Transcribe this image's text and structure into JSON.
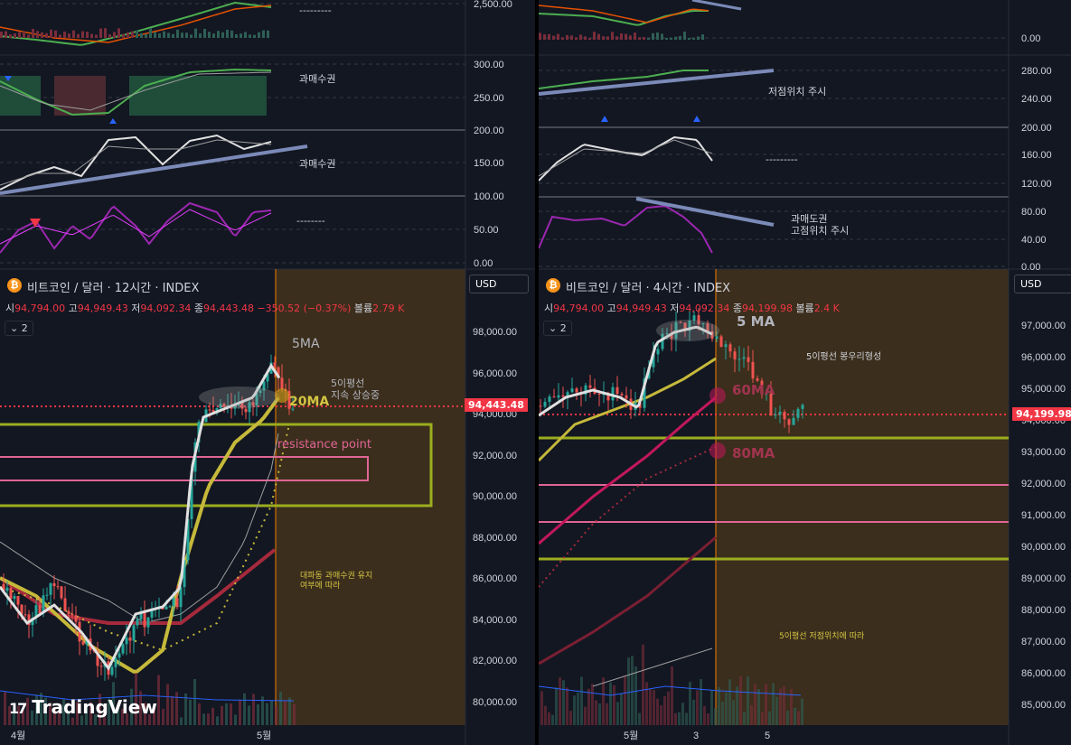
{
  "left": {
    "symbol_title": "비트코인 / 달러 · 12시간 · INDEX",
    "ohlc": {
      "o_label": "시",
      "o": "94,794.00",
      "h_label": "고",
      "h": "94,949.43",
      "l_label": "저",
      "l": "94,092.34",
      "c_label": "종",
      "c": "94,443.48",
      "change": "−350.52 (−0.37%)",
      "vol_label": "볼륨",
      "vol": "2.79 K"
    },
    "collapse_label": "2",
    "currency": "USD",
    "last_price_label": "94,443.48",
    "price_axis": [
      "98,000.00",
      "96,000.00",
      "94,000.00",
      "92,000.00",
      "90,000.00",
      "88,000.00",
      "86,000.00",
      "84,000.00",
      "82,000.00",
      "80,000.00"
    ],
    "osc_axis": [
      "2,500.00",
      "300.00",
      "250.00",
      "200.00",
      "150.00",
      "100.00",
      "50.00",
      "0.00"
    ],
    "time_axis": [
      "4월",
      "5월"
    ],
    "annotations": {
      "ma5": "5MA",
      "ma20": "20MA",
      "trend_line1": "5이평선",
      "trend_line2": "지속 상승중",
      "resistance": "resistance point",
      "note_line1": "대파동 과매수권 유지",
      "note_line2": "여부에 따라",
      "overbought_1": "과매수권",
      "overbought_2": "과매수권",
      "dash_1": "---------",
      "dash_2": "--------"
    },
    "watermark": "TradingView"
  },
  "right": {
    "symbol_title": "비트코인 / 달러 · 4시간 · INDEX",
    "ohlc": {
      "o_label": "시",
      "o": "94,794.00",
      "h_label": "고",
      "h": "94,949.43",
      "l_label": "저",
      "l": "94,092.34",
      "c_label": "종",
      "c": "94,199.98",
      "vol_label": "볼륨",
      "vol": "2.4 K"
    },
    "collapse_label": "2",
    "currency": "USD",
    "last_price_label": "94,199.98",
    "price_axis": [
      "97,000.00",
      "96,000.00",
      "95,000.00",
      "94,000.00",
      "93,000.00",
      "92,000.00",
      "91,000.00",
      "90,000.00",
      "89,000.00",
      "88,000.00",
      "87,000.00",
      "86,000.00",
      "85,000.00"
    ],
    "osc_axis": [
      "0.00",
      "280.00",
      "240.00",
      "200.00",
      "160.00",
      "120.00",
      "80.00",
      "40.00",
      "0.00"
    ],
    "time_axis": [
      "5월",
      "3",
      "5"
    ],
    "annotations": {
      "ma5": "5 MA",
      "ma60": "60MA",
      "ma80": "80MA",
      "top_note": "5이평선 봉우리형성",
      "low_position": "저점위치 주시",
      "oversold_1": "과매도권",
      "oversold_2": "고점위치 주시",
      "bottom_note": "5이평선 저점위치에 따라",
      "dash_1": "---------"
    }
  },
  "colors": {
    "background": "#131722",
    "grid_dashed": "#363a45",
    "up_candle": "#26a69a",
    "down_candle": "#ef5350",
    "ma5": "#e0e0e0",
    "ma20": "#c6b93a",
    "ma60": "#c2185b",
    "ma_trend": "#7b8ab8",
    "last_price": "#f23645",
    "resistance_green": "#9cad1f",
    "resistance_pink": "#e06595",
    "future_zone": "#3b2e1c",
    "stoch": "#9c27b0"
  },
  "chart_data": [
    {
      "type": "candlestick",
      "title": "비트코인 / 달러 · 12시간 · INDEX",
      "ylim": [
        79500,
        99000
      ],
      "x": [
        "4월",
        "5월"
      ],
      "last_close": 94443.48,
      "horizontal_levels": [
        93500,
        92500,
        91900,
        91200,
        90500,
        89500
      ],
      "moving_averages": [
        "5MA",
        "20MA"
      ]
    },
    {
      "type": "candlestick",
      "title": "비트코인 / 달러 · 4시간 · INDEX",
      "ylim": [
        84700,
        97500
      ],
      "x": [
        "5월",
        "3",
        "5"
      ],
      "last_close": 94199.98,
      "horizontal_levels": [
        93400,
        91950,
        90800,
        89550
      ],
      "moving_averages": [
        "5 MA",
        "60MA",
        "80MA"
      ]
    }
  ]
}
